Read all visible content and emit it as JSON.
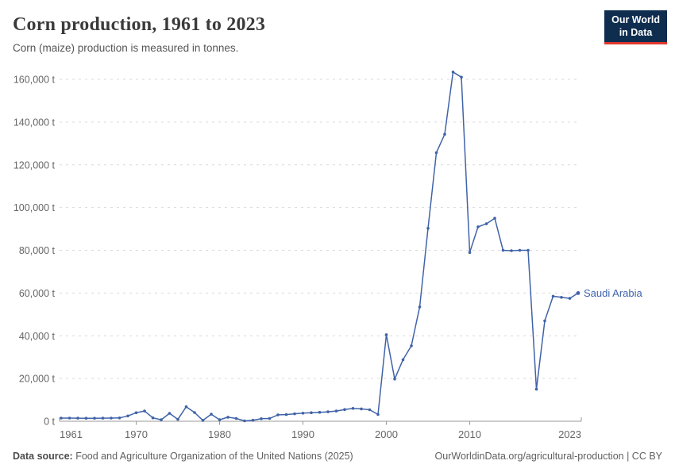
{
  "header": {
    "title": "Corn production, 1961 to 2023",
    "subtitle": "Corn (maize) production is measured in tonnes."
  },
  "logo": {
    "line1": "Our World",
    "line2": "in Data"
  },
  "footer": {
    "source_label": "Data source:",
    "source_text": " Food and Agriculture Organization of the United Nations (2025)",
    "right_text": "OurWorldinData.org/agricultural-production | CC BY"
  },
  "chart_data": {
    "type": "line",
    "title": "Corn production, 1961 to 2023",
    "xlabel": "",
    "ylabel": "",
    "unit": "t",
    "xlim": [
      1961,
      2023
    ],
    "ylim": [
      0,
      160000
    ],
    "grid": "horizontal-dashed",
    "legend_position": "end-of-line-label",
    "x_ticks": [
      {
        "v": 1961,
        "label": "1961"
      },
      {
        "v": 1970,
        "label": "1970"
      },
      {
        "v": 1980,
        "label": "1980"
      },
      {
        "v": 1990,
        "label": "1990"
      },
      {
        "v": 2000,
        "label": "2000"
      },
      {
        "v": 2010,
        "label": "2010"
      },
      {
        "v": 2023,
        "label": "2023"
      }
    ],
    "y_ticks": [
      {
        "v": 0,
        "label": "0 t"
      },
      {
        "v": 20000,
        "label": "20,000 t"
      },
      {
        "v": 40000,
        "label": "40,000 t"
      },
      {
        "v": 60000,
        "label": "60,000 t"
      },
      {
        "v": 80000,
        "label": "80,000 t"
      },
      {
        "v": 100000,
        "label": "100,000 t"
      },
      {
        "v": 120000,
        "label": "120,000 t"
      },
      {
        "v": 140000,
        "label": "140,000 t"
      },
      {
        "v": 160000,
        "label": "160,000 t"
      }
    ],
    "series": [
      {
        "name": "Saudi Arabia",
        "color": "#4063a8",
        "years": [
          1961,
          1962,
          1963,
          1964,
          1965,
          1966,
          1967,
          1968,
          1969,
          1970,
          1971,
          1972,
          1973,
          1974,
          1975,
          1976,
          1977,
          1978,
          1979,
          1980,
          1981,
          1982,
          1983,
          1984,
          1985,
          1986,
          1987,
          1988,
          1989,
          1990,
          1991,
          1992,
          1993,
          1994,
          1995,
          1996,
          1997,
          1998,
          1999,
          2000,
          2001,
          2002,
          2003,
          2004,
          2005,
          2006,
          2007,
          2008,
          2009,
          2010,
          2011,
          2012,
          2013,
          2014,
          2015,
          2016,
          2017,
          2018,
          2019,
          2020,
          2021,
          2022,
          2023
        ],
        "values": [
          1500,
          1500,
          1450,
          1400,
          1400,
          1450,
          1500,
          1550,
          2500,
          4000,
          4800,
          1600,
          700,
          3700,
          900,
          6800,
          4100,
          400,
          3300,
          700,
          1900,
          1300,
          200,
          500,
          1200,
          1300,
          3000,
          3100,
          3500,
          3800,
          4000,
          4200,
          4400,
          4800,
          5500,
          6000,
          5800,
          5400,
          3200,
          40500,
          19800,
          28800,
          35300,
          53500,
          90300,
          125700,
          134300,
          163400,
          161000,
          79000,
          91000,
          92400,
          95000,
          80000,
          79800,
          80000,
          80000,
          15000,
          47000,
          58500,
          58000,
          57500,
          60000
        ]
      }
    ],
    "colors": {
      "line": "#4063a8",
      "series_label": "#3d63ad",
      "grid": "#d9d9d9",
      "axis": "#999999",
      "tick_label": "#666666"
    }
  }
}
